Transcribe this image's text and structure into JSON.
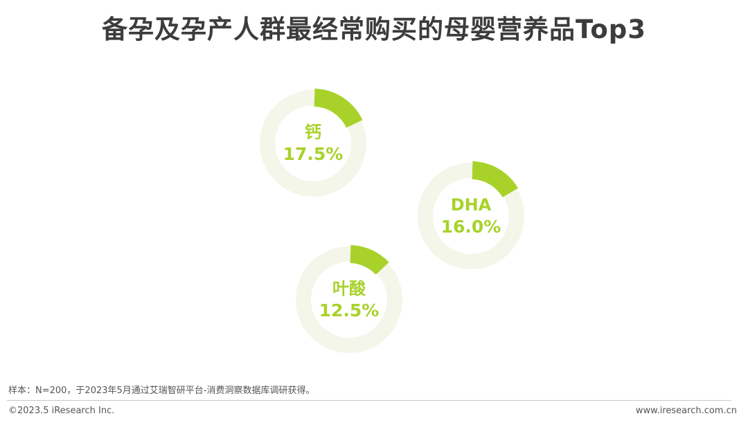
{
  "title": "备孕及孕产人群最经常购买的母婴营养品Top3",
  "chart_data": {
    "type": "pie",
    "title": "备孕及孕产人群最经常购买的母婴营养品Top3",
    "items": [
      {
        "name": "钙",
        "value": 17.5,
        "label": "17.5%"
      },
      {
        "name": "DHA",
        "value": 16.0,
        "label": "16.0%"
      },
      {
        "name": "叶酸",
        "value": 12.5,
        "label": "12.5%"
      }
    ],
    "total": 100
  },
  "colors": {
    "accent": "#a8d22a",
    "track": "#f3f6e8",
    "title": "#3c3c3c"
  },
  "footer": {
    "note": "样本：N=200，于2023年5月通过艾瑞智研平台-消费洞察数据库调研获得。",
    "copyright": "©2023.5 iResearch Inc.",
    "site": "www.iresearch.com.cn"
  }
}
